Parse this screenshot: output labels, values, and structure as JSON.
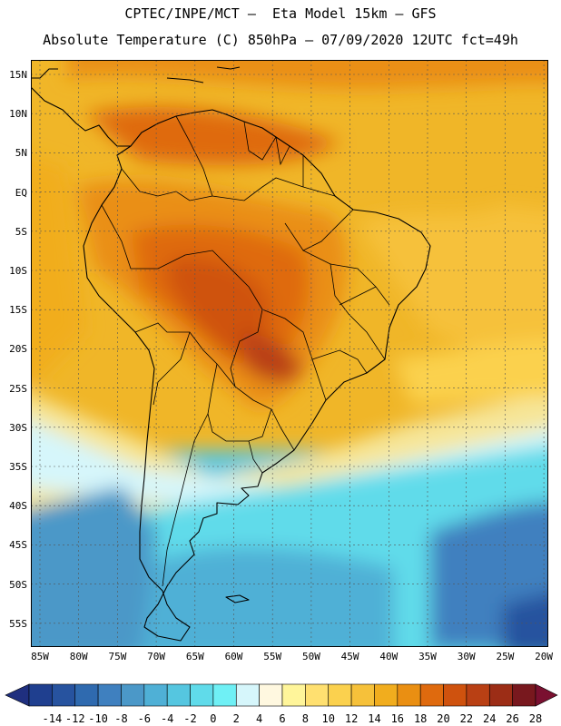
{
  "title": {
    "line1": "CPTEC/INPE/MCT –  Eta Model 15km – GFS",
    "line2": "Absolute Temperature (C) 850hPa – 07/09/2020 12UTC fct=49h"
  },
  "map": {
    "lat_labels": [
      "15N",
      "10N",
      "5N",
      "EQ",
      "5S",
      "10S",
      "15S",
      "20S",
      "25S",
      "30S",
      "35S",
      "40S",
      "45S",
      "50S",
      "55S"
    ],
    "lon_labels": [
      "85W",
      "80W",
      "75W",
      "70W",
      "65W",
      "60W",
      "55W",
      "50W",
      "45W",
      "40W",
      "35W",
      "30W",
      "25W",
      "20W"
    ]
  },
  "colorbar": {
    "labels": [
      "-14",
      "-12",
      "-10",
      "-8",
      "-6",
      "-4",
      "-2",
      "0",
      "2",
      "4",
      "6",
      "8",
      "10",
      "12",
      "14",
      "16",
      "18",
      "20",
      "22",
      "24",
      "26",
      "28"
    ],
    "colors": [
      "#1f3f8f",
      "#27539f",
      "#2f6aaf",
      "#3f80bf",
      "#4b98c8",
      "#4fb0d6",
      "#55c6e0",
      "#60dbea",
      "#6ff0f5",
      "#d6f6fb",
      "#fff8e0",
      "#fff59a",
      "#ffe070",
      "#fbd14e",
      "#f6c13a",
      "#f1ad1e",
      "#ea8f12",
      "#df6a0e",
      "#cf520e",
      "#b94014",
      "#9c2d16",
      "#78181e"
    ],
    "under_color": "#1f2f7f",
    "over_color": "#7a1030"
  }
}
